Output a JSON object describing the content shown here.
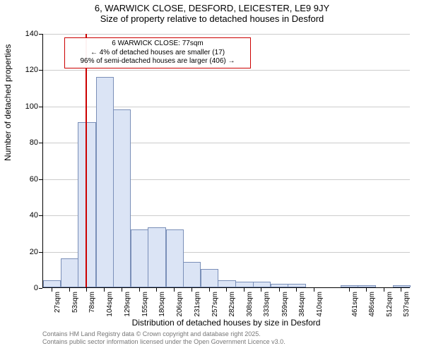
{
  "title": {
    "line1": "6, WARWICK CLOSE, DESFORD, LEICESTER, LE9 9JY",
    "line2": "Size of property relative to detached houses in Desford",
    "fontsize": 13
  },
  "chart": {
    "type": "histogram",
    "background_color": "#ffffff",
    "grid_color": "#cccccc",
    "bar_fill": "#dbe4f5",
    "bar_border": "#7a8fb8",
    "axis_color": "#000000",
    "ylabel": "Number of detached properties",
    "xlabel": "Distribution of detached houses by size in Desford",
    "label_fontsize": 12,
    "tick_fontsize": 11,
    "xtick_fontsize": 10,
    "ylim": [
      0,
      140
    ],
    "ytick_step": 20,
    "yticks": [
      0,
      20,
      40,
      60,
      80,
      100,
      120,
      140
    ],
    "xticks": [
      "27sqm",
      "53sqm",
      "78sqm",
      "104sqm",
      "129sqm",
      "155sqm",
      "180sqm",
      "206sqm",
      "231sqm",
      "257sqm",
      "282sqm",
      "308sqm",
      "333sqm",
      "359sqm",
      "384sqm",
      "410sqm",
      "461sqm",
      "486sqm",
      "512sqm",
      "537sqm"
    ],
    "bars": [
      {
        "x": 27,
        "v": 4
      },
      {
        "x": 53,
        "v": 16
      },
      {
        "x": 78,
        "v": 91
      },
      {
        "x": 104,
        "v": 116
      },
      {
        "x": 129,
        "v": 98
      },
      {
        "x": 155,
        "v": 32
      },
      {
        "x": 180,
        "v": 33
      },
      {
        "x": 206,
        "v": 32
      },
      {
        "x": 231,
        "v": 14
      },
      {
        "x": 257,
        "v": 10
      },
      {
        "x": 282,
        "v": 4
      },
      {
        "x": 308,
        "v": 3
      },
      {
        "x": 333,
        "v": 3
      },
      {
        "x": 359,
        "v": 2
      },
      {
        "x": 384,
        "v": 2
      },
      {
        "x": 410,
        "v": 0
      },
      {
        "x": 461,
        "v": 1
      },
      {
        "x": 486,
        "v": 1
      },
      {
        "x": 512,
        "v": 0
      },
      {
        "x": 537,
        "v": 1
      }
    ],
    "bar_width_ratio": 0.98,
    "marker": {
      "x": 77,
      "color": "#cc0000",
      "width": 2
    },
    "annotation": {
      "line1": "6 WARWICK CLOSE: 77sqm",
      "line2": "← 4% of detached houses are smaller (17)",
      "line3": "96% of semi-detached houses are larger (406) →",
      "border_color": "#cc0000",
      "fontsize": 10,
      "bg": "#ffffff"
    },
    "x_domain": [
      14,
      550
    ]
  },
  "footer": {
    "line1": "Contains HM Land Registry data © Crown copyright and database right 2025.",
    "line2": "Contains public sector information licensed under the Open Government Licence v3.0.",
    "color": "#777777",
    "fontsize": 9
  }
}
